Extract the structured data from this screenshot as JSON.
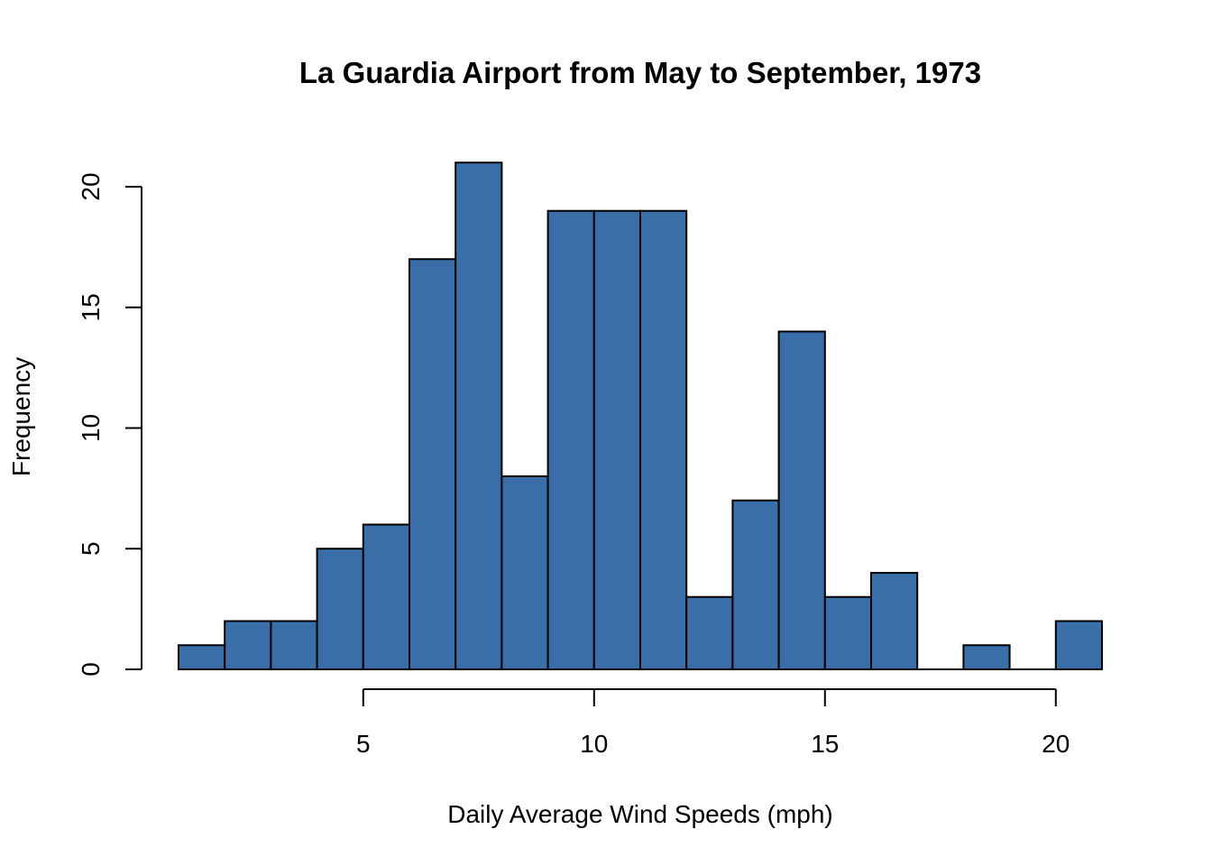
{
  "chart_data": {
    "type": "bar",
    "title": "La Guardia Airport from May to September, 1973",
    "xlabel": "Daily Average Wind Speeds (mph)",
    "ylabel": "Frequency",
    "bar_color": "#3A6EA8",
    "bins": [
      {
        "start": 1,
        "end": 2,
        "count": 1
      },
      {
        "start": 2,
        "end": 3,
        "count": 2
      },
      {
        "start": 3,
        "end": 4,
        "count": 2
      },
      {
        "start": 4,
        "end": 5,
        "count": 5
      },
      {
        "start": 5,
        "end": 6,
        "count": 6
      },
      {
        "start": 6,
        "end": 7,
        "count": 17
      },
      {
        "start": 7,
        "end": 8,
        "count": 21
      },
      {
        "start": 8,
        "end": 9,
        "count": 8
      },
      {
        "start": 9,
        "end": 10,
        "count": 19
      },
      {
        "start": 10,
        "end": 11,
        "count": 19
      },
      {
        "start": 11,
        "end": 12,
        "count": 19
      },
      {
        "start": 12,
        "end": 13,
        "count": 3
      },
      {
        "start": 13,
        "end": 14,
        "count": 7
      },
      {
        "start": 14,
        "end": 15,
        "count": 14
      },
      {
        "start": 15,
        "end": 16,
        "count": 3
      },
      {
        "start": 16,
        "end": 17,
        "count": 4
      },
      {
        "start": 17,
        "end": 18,
        "count": 0
      },
      {
        "start": 18,
        "end": 19,
        "count": 1
      },
      {
        "start": 19,
        "end": 20,
        "count": 0
      },
      {
        "start": 20,
        "end": 21,
        "count": 2
      }
    ],
    "x_ticks": [
      "5",
      "10",
      "15",
      "20"
    ],
    "y_ticks": [
      "0",
      "5",
      "10",
      "15",
      "20"
    ],
    "xlim": [
      1,
      21
    ],
    "ylim": [
      0,
      21
    ],
    "grid": false,
    "legend": false
  }
}
